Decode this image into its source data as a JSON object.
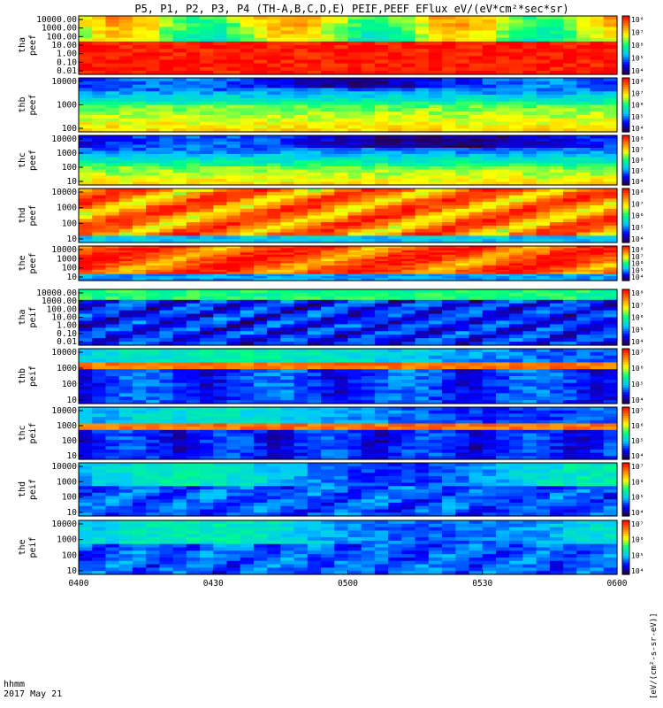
{
  "chart_data": {
    "type": "heatmap",
    "title": "P5, P1, P2, P3, P4 (TH-A,B,C,D,E) PEIF,PEEF EFlux eV/(eV*cm²*sec*sr)",
    "xlabel_line1": "hhmm",
    "xlabel_line2": "2017 May 21",
    "x_ticks": [
      "0400",
      "0430",
      "0500",
      "0530",
      "0600"
    ],
    "xlim": [
      "0400",
      "0600"
    ],
    "colorbar_units": "[eV/(cm²-s-sr-eV)]",
    "colormap": [
      "#2a003f",
      "#0000ff",
      "#00c8ff",
      "#00ff80",
      "#ffff00",
      "#ff8000",
      "#ff0000"
    ],
    "panels": [
      {
        "probe": "tha",
        "species": "peef",
        "ylabel_1": "tha",
        "ylabel_2": "peef",
        "yticks": [
          "10000.00",
          "1000.00",
          "100.00",
          "10.00",
          "1.00",
          "0.10",
          "0.01"
        ],
        "cbar_ticks": [
          "10⁸",
          "10⁷",
          "10⁶",
          "10⁵",
          "10⁴"
        ],
        "zlim": [
          4,
          8
        ]
      },
      {
        "probe": "thb",
        "species": "peef",
        "ylabel_1": "thb",
        "ylabel_2": "peef",
        "yticks": [
          "10000",
          "1000",
          "100"
        ],
        "cbar_ticks": [
          "10⁸",
          "10⁷",
          "10⁶",
          "10⁵",
          "10⁴"
        ],
        "zlim": [
          4,
          8
        ]
      },
      {
        "probe": "thc",
        "species": "peef",
        "ylabel_1": "thc",
        "ylabel_2": "peef",
        "yticks": [
          "10000",
          "1000",
          "100",
          "10"
        ],
        "cbar_ticks": [
          "10⁸",
          "10⁷",
          "10⁶",
          "10⁵",
          "10⁴"
        ],
        "zlim": [
          4,
          8
        ]
      },
      {
        "probe": "thd",
        "species": "peef",
        "ylabel_1": "thd",
        "ylabel_2": "peef",
        "yticks": [
          "10000",
          "1000",
          "100",
          "10"
        ],
        "cbar_ticks": [
          "10⁸",
          "10⁷",
          "10⁶",
          "10⁵",
          "10⁴"
        ],
        "zlim": [
          4,
          8
        ]
      },
      {
        "probe": "the",
        "species": "peef",
        "ylabel_1": "the",
        "ylabel_2": "peef",
        "yticks": [
          "10000",
          "1000",
          "100",
          "10"
        ],
        "cbar_ticks": [
          "10⁸",
          "10⁷",
          "10⁶",
          "10⁵",
          "10⁴"
        ],
        "zlim": [
          4,
          8
        ]
      },
      {
        "probe": "tha",
        "species": "peif",
        "ylabel_1": "tha",
        "ylabel_2": "peif",
        "yticks": [
          "10000.00",
          "1000.00",
          "100.00",
          "10.00",
          "1.00",
          "0.10",
          "0.01"
        ],
        "cbar_ticks": [
          "10⁸",
          "10⁷",
          "10⁶",
          "10⁵",
          "10⁴"
        ],
        "zlim": [
          4,
          8
        ]
      },
      {
        "probe": "thb",
        "species": "peif",
        "ylabel_1": "thb",
        "ylabel_2": "peif",
        "yticks": [
          "10000",
          "1000",
          "100",
          "10"
        ],
        "cbar_ticks": [
          "10⁷",
          "10⁶",
          "10⁵",
          "10⁴"
        ],
        "zlim": [
          4,
          7
        ]
      },
      {
        "probe": "thc",
        "species": "peif",
        "ylabel_1": "thc",
        "ylabel_2": "peif",
        "yticks": [
          "10000",
          "1000",
          "100",
          "10"
        ],
        "cbar_ticks": [
          "10⁷",
          "10⁶",
          "10⁵",
          "10⁴"
        ],
        "zlim": [
          4,
          7
        ]
      },
      {
        "probe": "thd",
        "species": "peif",
        "ylabel_1": "thd",
        "ylabel_2": "peif",
        "yticks": [
          "10000",
          "1000",
          "100",
          "10"
        ],
        "cbar_ticks": [
          "10⁷",
          "10⁶",
          "10⁵",
          "10⁴"
        ],
        "zlim": [
          4,
          7
        ]
      },
      {
        "probe": "the",
        "species": "peif",
        "ylabel_1": "the",
        "ylabel_2": "peif",
        "yticks": [
          "10000",
          "1000",
          "100",
          "10"
        ],
        "cbar_ticks": [
          "10⁷",
          "10⁶",
          "10⁵",
          "10⁴"
        ],
        "zlim": [
          4,
          7
        ]
      }
    ]
  }
}
